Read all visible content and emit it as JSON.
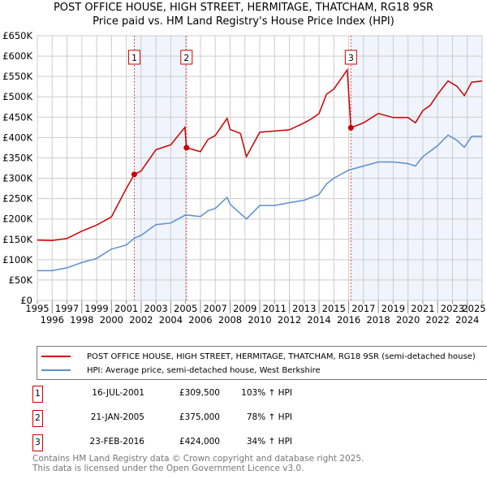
{
  "chart_data": {
    "type": "line",
    "title": "POST OFFICE HOUSE, HIGH STREET, HERMITAGE, THATCHAM, RG18 9SR",
    "subtitle": "Price paid vs. HM Land Registry's House Price Index (HPI)",
    "xlim": [
      1995,
      2025
    ],
    "ylim": [
      0,
      650000
    ],
    "x_ticks": [
      "1995",
      "1996",
      "1997",
      "1998",
      "1999",
      "2000",
      "2001",
      "2002",
      "2003",
      "2004",
      "2005",
      "2006",
      "2007",
      "2008",
      "2009",
      "2010",
      "2011",
      "2012",
      "2013",
      "2014",
      "2015",
      "2016",
      "2017",
      "2018",
      "2019",
      "2020",
      "2021",
      "2022",
      "2023",
      "2024",
      "2025"
    ],
    "y_ticks": [
      {
        "v": 0,
        "label": "£0"
      },
      {
        "v": 50000,
        "label": "£50K"
      },
      {
        "v": 100000,
        "label": "£100K"
      },
      {
        "v": 150000,
        "label": "£150K"
      },
      {
        "v": 200000,
        "label": "£200K"
      },
      {
        "v": 250000,
        "label": "£250K"
      },
      {
        "v": 300000,
        "label": "£300K"
      },
      {
        "v": 350000,
        "label": "£350K"
      },
      {
        "v": 400000,
        "label": "£400K"
      },
      {
        "v": 450000,
        "label": "£450K"
      },
      {
        "v": 500000,
        "label": "£500K"
      },
      {
        "v": 550000,
        "label": "£550K"
      },
      {
        "v": 600000,
        "label": "£600K"
      },
      {
        "v": 650000,
        "label": "£650K"
      }
    ],
    "grid": true,
    "series": [
      {
        "name": "POST OFFICE HOUSE, HIGH STREET, HERMITAGE, THATCHAM, RG18 9SR (semi-detached house)",
        "color": "#cc0000",
        "x": [
          1995,
          1996,
          1997,
          1998,
          1999,
          2000,
          2001,
          2001.54,
          2002,
          2003,
          2004,
          2004.95,
          2005.06,
          2006,
          2006.5,
          2007,
          2007.8,
          2008,
          2008.7,
          2009.1,
          2010,
          2011,
          2012,
          2013,
          2013.5,
          2014,
          2014.5,
          2015,
          2015.9,
          2016.15,
          2017,
          2018,
          2019,
          2020,
          2020.5,
          2021,
          2021.5,
          2022,
          2022.7,
          2023.3,
          2023.8,
          2024.3,
          2025
        ],
        "y": [
          148000,
          147000,
          152000,
          170000,
          185000,
          205000,
          275000,
          309500,
          318000,
          370000,
          382000,
          425000,
          375000,
          365000,
          395000,
          405000,
          447000,
          420000,
          410000,
          353000,
          413000,
          416000,
          419000,
          436000,
          446000,
          459000,
          506000,
          519000,
          566000,
          424000,
          436000,
          459000,
          449000,
          449000,
          436000,
          466000,
          479000,
          506000,
          539000,
          526000,
          503000,
          536000,
          539000
        ]
      },
      {
        "name": "HPI: Average price, semi-detached house, West Berkshire",
        "color": "#5b8fd0",
        "x": [
          1995,
          1996,
          1997,
          1998,
          1999,
          2000,
          2001,
          2001.54,
          2002,
          2003,
          2004,
          2005,
          2006,
          2006.5,
          2007,
          2007.8,
          2008,
          2009.1,
          2010,
          2011,
          2012,
          2013,
          2014,
          2014.5,
          2015,
          2016,
          2017,
          2018,
          2019,
          2020,
          2020.5,
          2021,
          2022,
          2022.7,
          2023.3,
          2023.8,
          2024.3,
          2025
        ],
        "y": [
          73000,
          73000,
          80000,
          93000,
          103000,
          126000,
          136000,
          153000,
          160000,
          186000,
          190000,
          210000,
          206000,
          220000,
          226000,
          253000,
          236000,
          200000,
          233000,
          233000,
          240000,
          246000,
          260000,
          286000,
          300000,
          320000,
          330000,
          340000,
          340000,
          336000,
          330000,
          353000,
          380000,
          406000,
          393000,
          376000,
          403000,
          403000
        ]
      }
    ],
    "shaded_ranges": [
      [
        2001.54,
        2005.06
      ],
      [
        2016.15,
        2025
      ]
    ],
    "sales": [
      {
        "n": "1",
        "x": 2001.54,
        "date": "16-JUL-2001",
        "price": "£309,500",
        "value": 309500,
        "hpi": "103% ↑ HPI"
      },
      {
        "n": "2",
        "x": 2005.06,
        "date": "21-JAN-2005",
        "price": "£375,000",
        "value": 375000,
        "hpi": "78% ↑ HPI"
      },
      {
        "n": "3",
        "x": 2016.15,
        "date": "23-FEB-2016",
        "price": "£424,000",
        "value": 424000,
        "hpi": "34% ↑ HPI"
      }
    ],
    "legend_position": "below"
  },
  "footer": [
    "Contains HM Land Registry data © Crown copyright and database right 2025.",
    "This data is licensed under the Open Government Licence v3.0."
  ]
}
